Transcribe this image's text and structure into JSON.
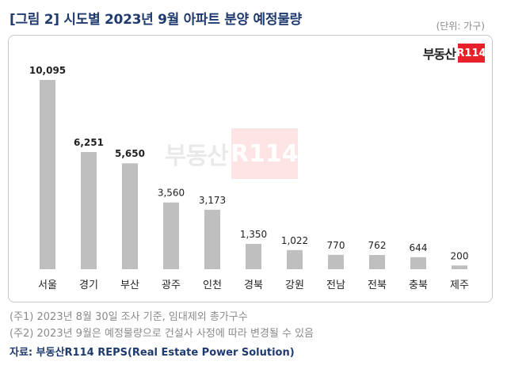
{
  "header": {
    "title": "[그림 2] 시도별 2023년 9월 아파트 분양 예정물량",
    "unit": "(단위: 가구)"
  },
  "logo": {
    "text": "부동산",
    "badge": "R114",
    "brand_color": "#e8202a"
  },
  "chart_data": {
    "type": "bar",
    "categories": [
      "서울",
      "경기",
      "부산",
      "광주",
      "인천",
      "경북",
      "강원",
      "전남",
      "전북",
      "충북",
      "제주"
    ],
    "values": [
      10095,
      6251,
      5650,
      3560,
      3173,
      1350,
      1022,
      770,
      762,
      644,
      200
    ],
    "value_labels": [
      "10,095",
      "6,251",
      "5,650",
      "3,560",
      "3,173",
      "1,350",
      "1,022",
      "770",
      "762",
      "644",
      "200"
    ],
    "bold_labels": [
      true,
      true,
      true,
      false,
      false,
      false,
      false,
      false,
      false,
      false,
      false
    ],
    "bar_color": "#bfbfbf",
    "ylim": [
      0,
      10095
    ],
    "grid": false,
    "legend": "none"
  },
  "footnotes": [
    "(주1) 2023년 8월 30일 조사 기준, 임대제외 총가구수",
    "(주2) 2023년 9월은 예정물량으로 건설사 사정에 따라 변경될 수 있음"
  ],
  "source": "자료: 부동산R114 REPS(Real Estate Power Solution)"
}
